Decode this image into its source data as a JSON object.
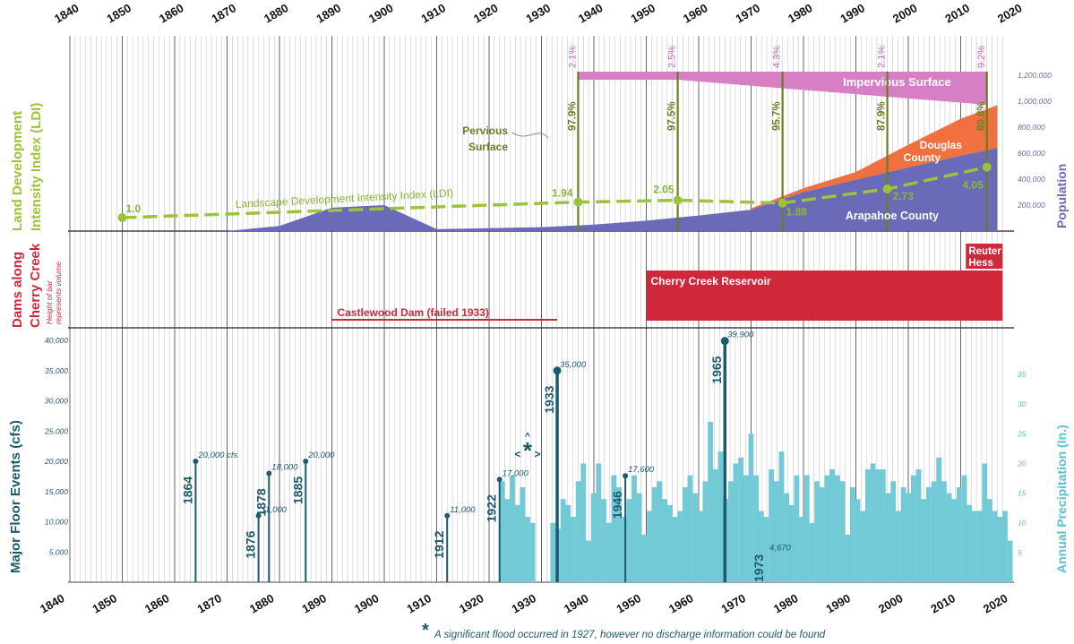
{
  "chart_data": {
    "type": "timeline",
    "years": [
      "1840",
      "1850",
      "1860",
      "1870",
      "1880",
      "1890",
      "1900",
      "1910",
      "1920",
      "1930",
      "1940",
      "1950",
      "1960",
      "1970",
      "1980",
      "1990",
      "2000",
      "2010",
      "2020"
    ],
    "colors": {
      "ldi": "#9bc43a",
      "ldi_label": "#8ab53a",
      "pervious": "#6b7d22",
      "impervious": "#d77fc4",
      "impervious_text": "#c866b7",
      "douglas": "#f07040",
      "arapahoe": "#6a6ab8",
      "dam": "#d0283a",
      "flood": "#1d5a6e",
      "precip": "#72cad6"
    },
    "land_panel": {
      "label_line1": "Land Development",
      "label_line2": "Intensity Index (LDI)",
      "population_label": "Population",
      "population_ticks": [
        "1,200,000",
        "1,000,000",
        "800,000",
        "600,000",
        "400,000",
        "200,000"
      ],
      "impervious_label": "Impervious Surface",
      "pervious_label_line1": "Pervious",
      "pervious_label_line2": "Surface",
      "douglas_label_line1": "Douglas",
      "douglas_label_line2": "County",
      "arapahoe_label": "Arapahoe County",
      "ldi_series_label": "Landscape Development Intensity Index (LDI)",
      "ldi_points": [
        {
          "year": 1850,
          "value": 1.0,
          "label": "1.0"
        },
        {
          "year": 1937,
          "value": 1.94,
          "label": "1.94"
        },
        {
          "year": 1956,
          "value": 2.05,
          "label": "2.05"
        },
        {
          "year": 1976,
          "value": 1.88,
          "label": "1.88"
        },
        {
          "year": 1996,
          "value": 2.73,
          "label": "2.73"
        },
        {
          "year": 2015,
          "value": 4.05,
          "label": "4.05"
        }
      ],
      "surface_years": [
        {
          "year": 1937,
          "impervious": "2.1%",
          "pervious": "97.9%"
        },
        {
          "year": 1956,
          "impervious": "2.5%",
          "pervious": "97.5%"
        },
        {
          "year": 1976,
          "impervious": "4.3%",
          "pervious": "95.7%"
        },
        {
          "year": 1996,
          "impervious": "2.1%",
          "pervious": "87.9%"
        },
        {
          "year": 2015,
          "impervious": "9.2%",
          "pervious": "80.8%"
        }
      ],
      "arapahoe_population": [
        {
          "year": 1870,
          "value": 0
        },
        {
          "year": 1880,
          "value": 40000
        },
        {
          "year": 1890,
          "value": 180000
        },
        {
          "year": 1900,
          "value": 200000
        },
        {
          "year": 1910,
          "value": 15000
        },
        {
          "year": 1930,
          "value": 30000
        },
        {
          "year": 1940,
          "value": 50000
        },
        {
          "year": 1950,
          "value": 80000
        },
        {
          "year": 1960,
          "value": 120000
        },
        {
          "year": 1970,
          "value": 165000
        },
        {
          "year": 1980,
          "value": 300000
        },
        {
          "year": 1990,
          "value": 395000
        },
        {
          "year": 2000,
          "value": 490000
        },
        {
          "year": 2010,
          "value": 580000
        },
        {
          "year": 2017,
          "value": 640000
        }
      ],
      "douglas_population": [
        {
          "year": 1970,
          "value": 10000
        },
        {
          "year": 1980,
          "value": 30000
        },
        {
          "year": 1990,
          "value": 60000
        },
        {
          "year": 2000,
          "value": 175000
        },
        {
          "year": 2010,
          "value": 285000
        },
        {
          "year": 2017,
          "value": 330000
        }
      ]
    },
    "dams_panel": {
      "label_line1": "Dams along",
      "label_line2": "Cherry Creek",
      "note_line1": "Height of bar",
      "note_line2": "represents volume",
      "dams": [
        {
          "name": "Castlewood Dam (failed 1933)",
          "start": 1890,
          "end": 1933,
          "size": 0.03
        },
        {
          "name": "Cherry Creek Reservoir",
          "start": 1950,
          "end": 2018,
          "size": 1.0
        },
        {
          "name_line1": "Reuter",
          "name_line2": "Hess",
          "start": 2011,
          "end": 2018,
          "size": 0.5
        }
      ]
    },
    "flood_panel": {
      "label": "Major Floor Events (cfs)",
      "precip_label": "Annual Precipitation (In.)",
      "cfs_ticks": [
        "40,000",
        "35,000",
        "30,000",
        "25,000",
        "20,000",
        "15,000",
        "10,000",
        "5,000"
      ],
      "precip_ticks": [
        "35",
        "30",
        "25",
        "20",
        "15",
        "10",
        "5"
      ],
      "events": [
        {
          "year": 1864,
          "cfs": 20000,
          "label": "20,000 cfs",
          "year_label": "1864"
        },
        {
          "year": 1876,
          "cfs": 11000,
          "label": "11,000",
          "year_label": "1876"
        },
        {
          "year": 1878,
          "cfs": 18000,
          "label": "18,000",
          "year_label": "1878"
        },
        {
          "year": 1885,
          "cfs": 20000,
          "label": "20,000",
          "year_label": "1885"
        },
        {
          "year": 1912,
          "cfs": 11000,
          "label": "11,000",
          "year_label": "1912"
        },
        {
          "year": 1922,
          "cfs": 17000,
          "label": "17,000",
          "year_label": "1922"
        },
        {
          "year": 1933,
          "cfs": 35000,
          "label": "35,000",
          "year_label": "1933"
        },
        {
          "year": 1946,
          "cfs": 17600,
          "label": "17,600",
          "year_label": "1946"
        },
        {
          "year": 1965,
          "cfs": 39900,
          "label": "39,900",
          "year_label": "1965"
        },
        {
          "year": 1973,
          "cfs": 4670,
          "label": "4,670",
          "year_label": "1973"
        }
      ],
      "precip_start_year": 1922,
      "precipitation": [
        17,
        14,
        18,
        13,
        16,
        11,
        10,
        null,
        null,
        null,
        10,
        9,
        14,
        13,
        11,
        17,
        20,
        7,
        15,
        20,
        14,
        10,
        18,
        16,
        11,
        14,
        18,
        15,
        8,
        12,
        16,
        17,
        14,
        13,
        11,
        12,
        16,
        18,
        15,
        12,
        17,
        27,
        19,
        22,
        14,
        17,
        20,
        21,
        18,
        25,
        18,
        12,
        11,
        19,
        17,
        22,
        15,
        13,
        18,
        11,
        18,
        10,
        17,
        16,
        18,
        19,
        18,
        17,
        8,
        16,
        14,
        12,
        19,
        20,
        19,
        19,
        15,
        17,
        12,
        16,
        15,
        18,
        19,
        14,
        16,
        17,
        21,
        17,
        15,
        14,
        16,
        18,
        13,
        12,
        12,
        20,
        14,
        12,
        11,
        12,
        7
      ]
    },
    "marker": "*",
    "footnote": "A significant flood occurred in 1927, however no discharge information could be found"
  }
}
